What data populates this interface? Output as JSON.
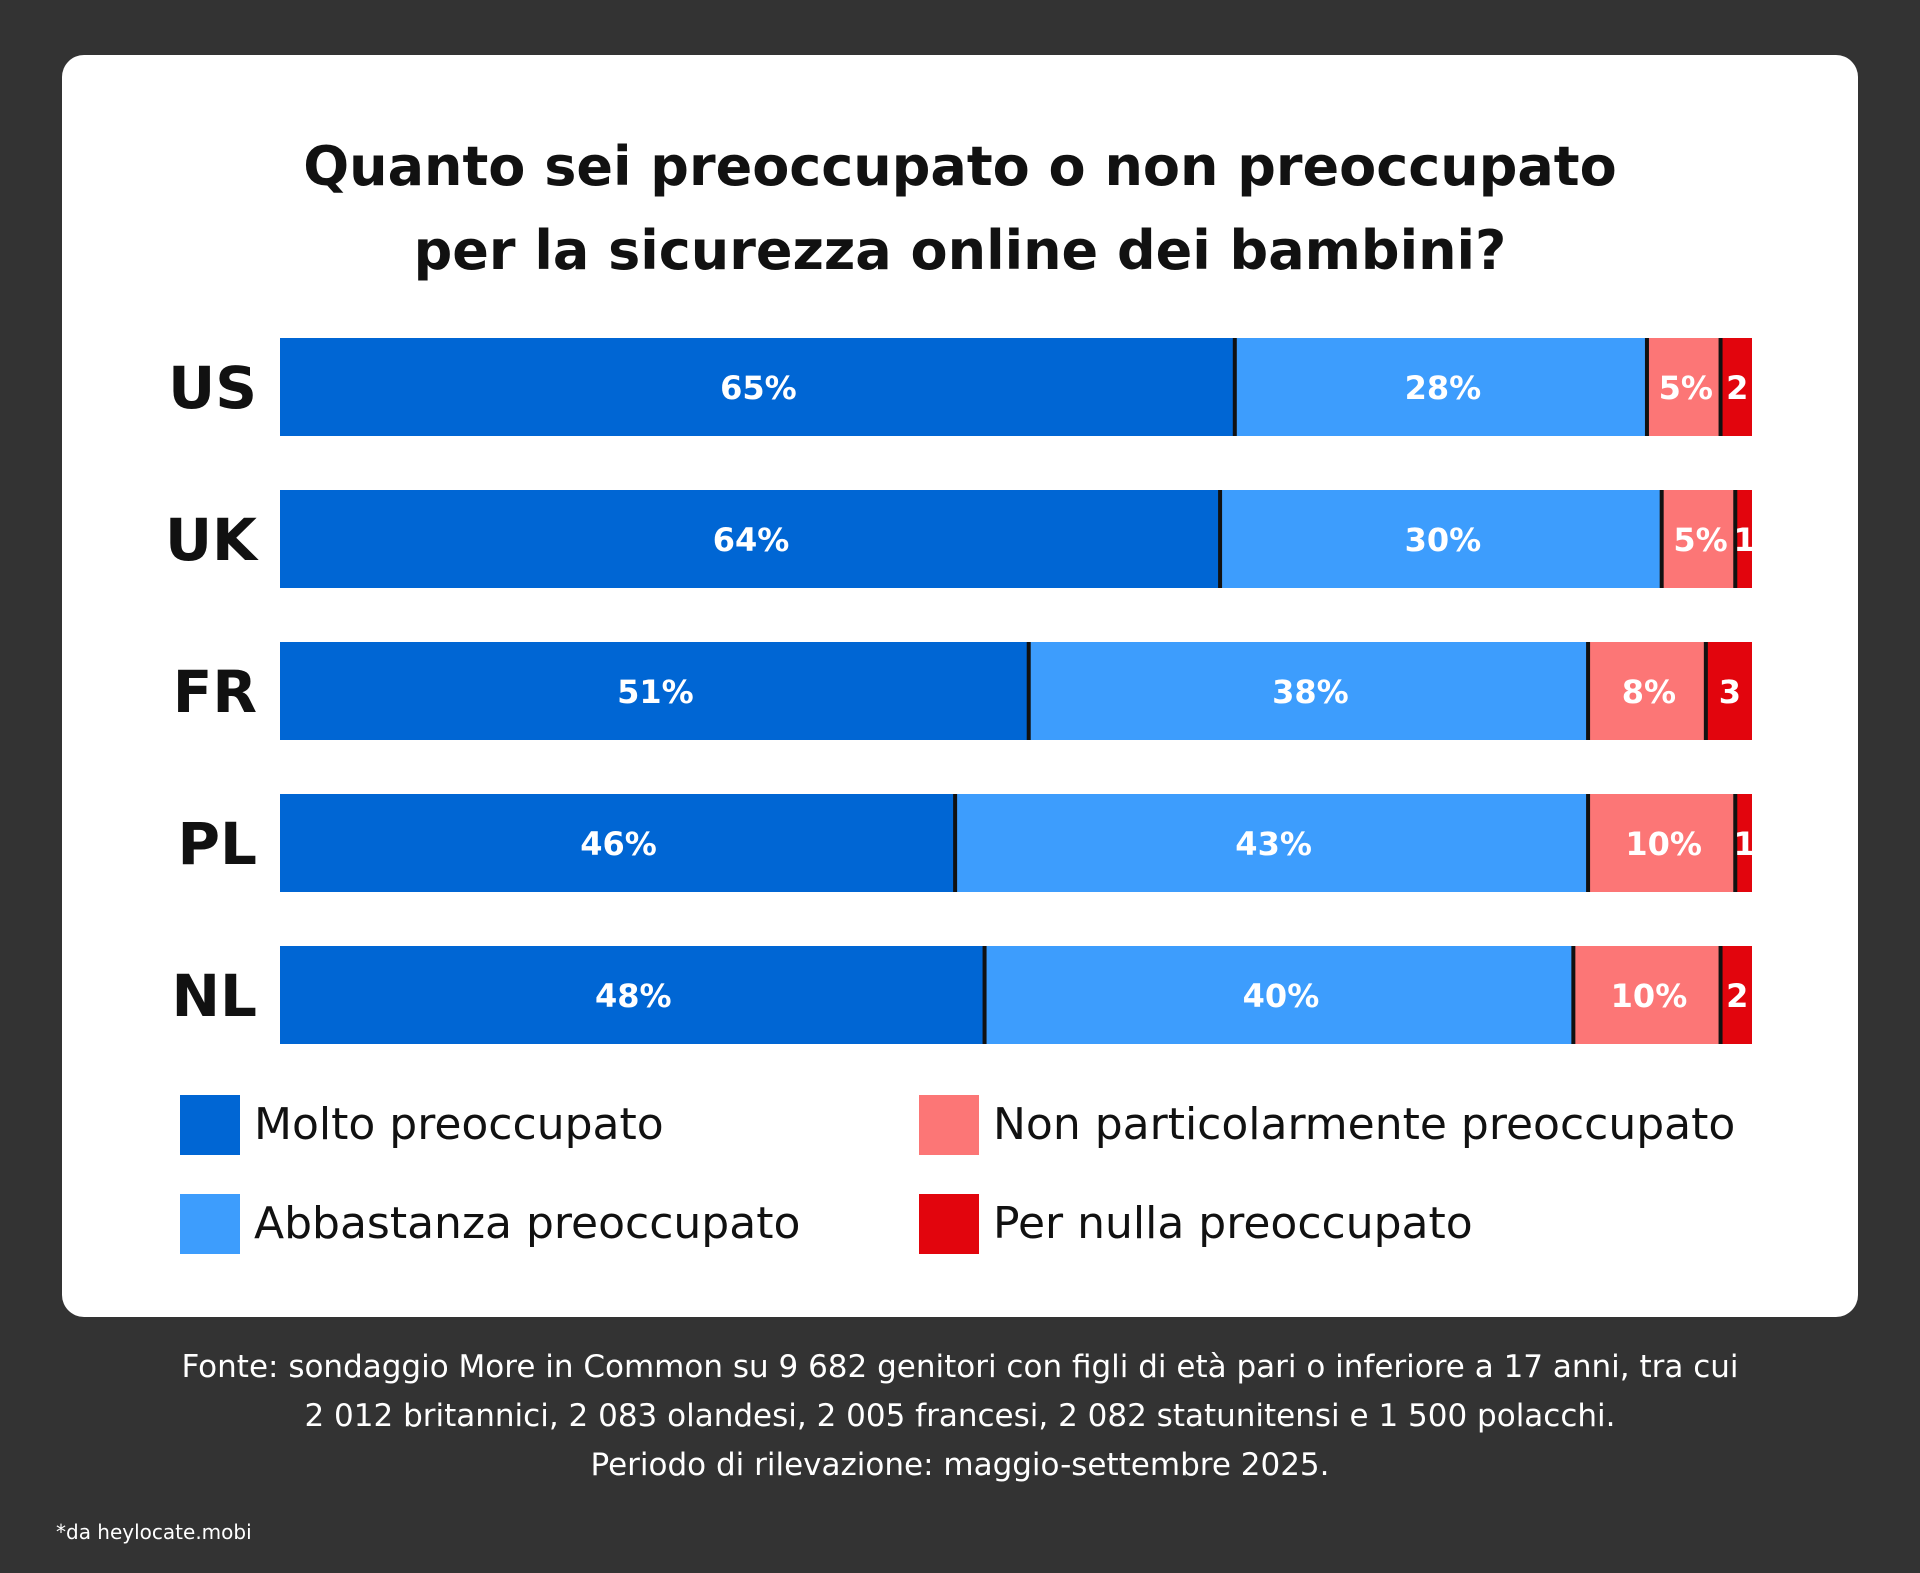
{
  "chart_data": {
    "type": "bar",
    "orientation": "horizontal",
    "stacked": true,
    "title_lines": [
      "Quanto sei preoccupato o non preoccupato",
      "per la sicurezza online dei bambini?"
    ],
    "categories": [
      "US",
      "UK",
      "FR",
      "PL",
      "NL"
    ],
    "series": [
      {
        "name": "Molto preoccupato",
        "color": "#0066d4",
        "values": [
          65,
          64,
          51,
          46,
          48
        ],
        "labels": [
          "65%",
          "64%",
          "51%",
          "46%",
          "48%"
        ]
      },
      {
        "name": "Abbastanza preoccupato",
        "color": "#3d9dfd",
        "values": [
          28,
          30,
          38,
          43,
          40
        ],
        "labels": [
          "28%",
          "30%",
          "38%",
          "43%",
          "40%"
        ]
      },
      {
        "name": "Non particolarmente preoccupato",
        "color": "#fc7676",
        "values": [
          5,
          5,
          8,
          10,
          10
        ],
        "labels": [
          "5%",
          "5%",
          "8%",
          "10%",
          "10%"
        ]
      },
      {
        "name": "Per nulla preoccupato",
        "color": "#e2050d",
        "values": [
          2,
          1,
          3,
          1,
          2
        ],
        "labels": [
          "2",
          "1",
          "3",
          "1",
          "2"
        ]
      }
    ],
    "xlim": [
      0,
      100
    ],
    "grid": false,
    "legend_position": "bottom"
  },
  "legend": [
    {
      "label": "Molto preoccupato",
      "color": "#0066d4"
    },
    {
      "label": "Non particolarmente preoccupato",
      "color": "#fc7676"
    },
    {
      "label": "Abbastanza preoccupato",
      "color": "#3d9dfd"
    },
    {
      "label": "Per nulla preoccupato",
      "color": "#e2050d"
    }
  ],
  "source_lines": [
    "Fonte: sondaggio More in Common su 9 682 genitori con figli di età pari o inferiore a 17 anni, tra cui",
    "2 012 britannici, 2 083 olandesi, 2 005 francesi, 2 082 statunitensi e 1 500 polacchi.",
    "Periodo di rilevazione: maggio-settembre 2025."
  ],
  "credit": "*da heylocate.mobi"
}
